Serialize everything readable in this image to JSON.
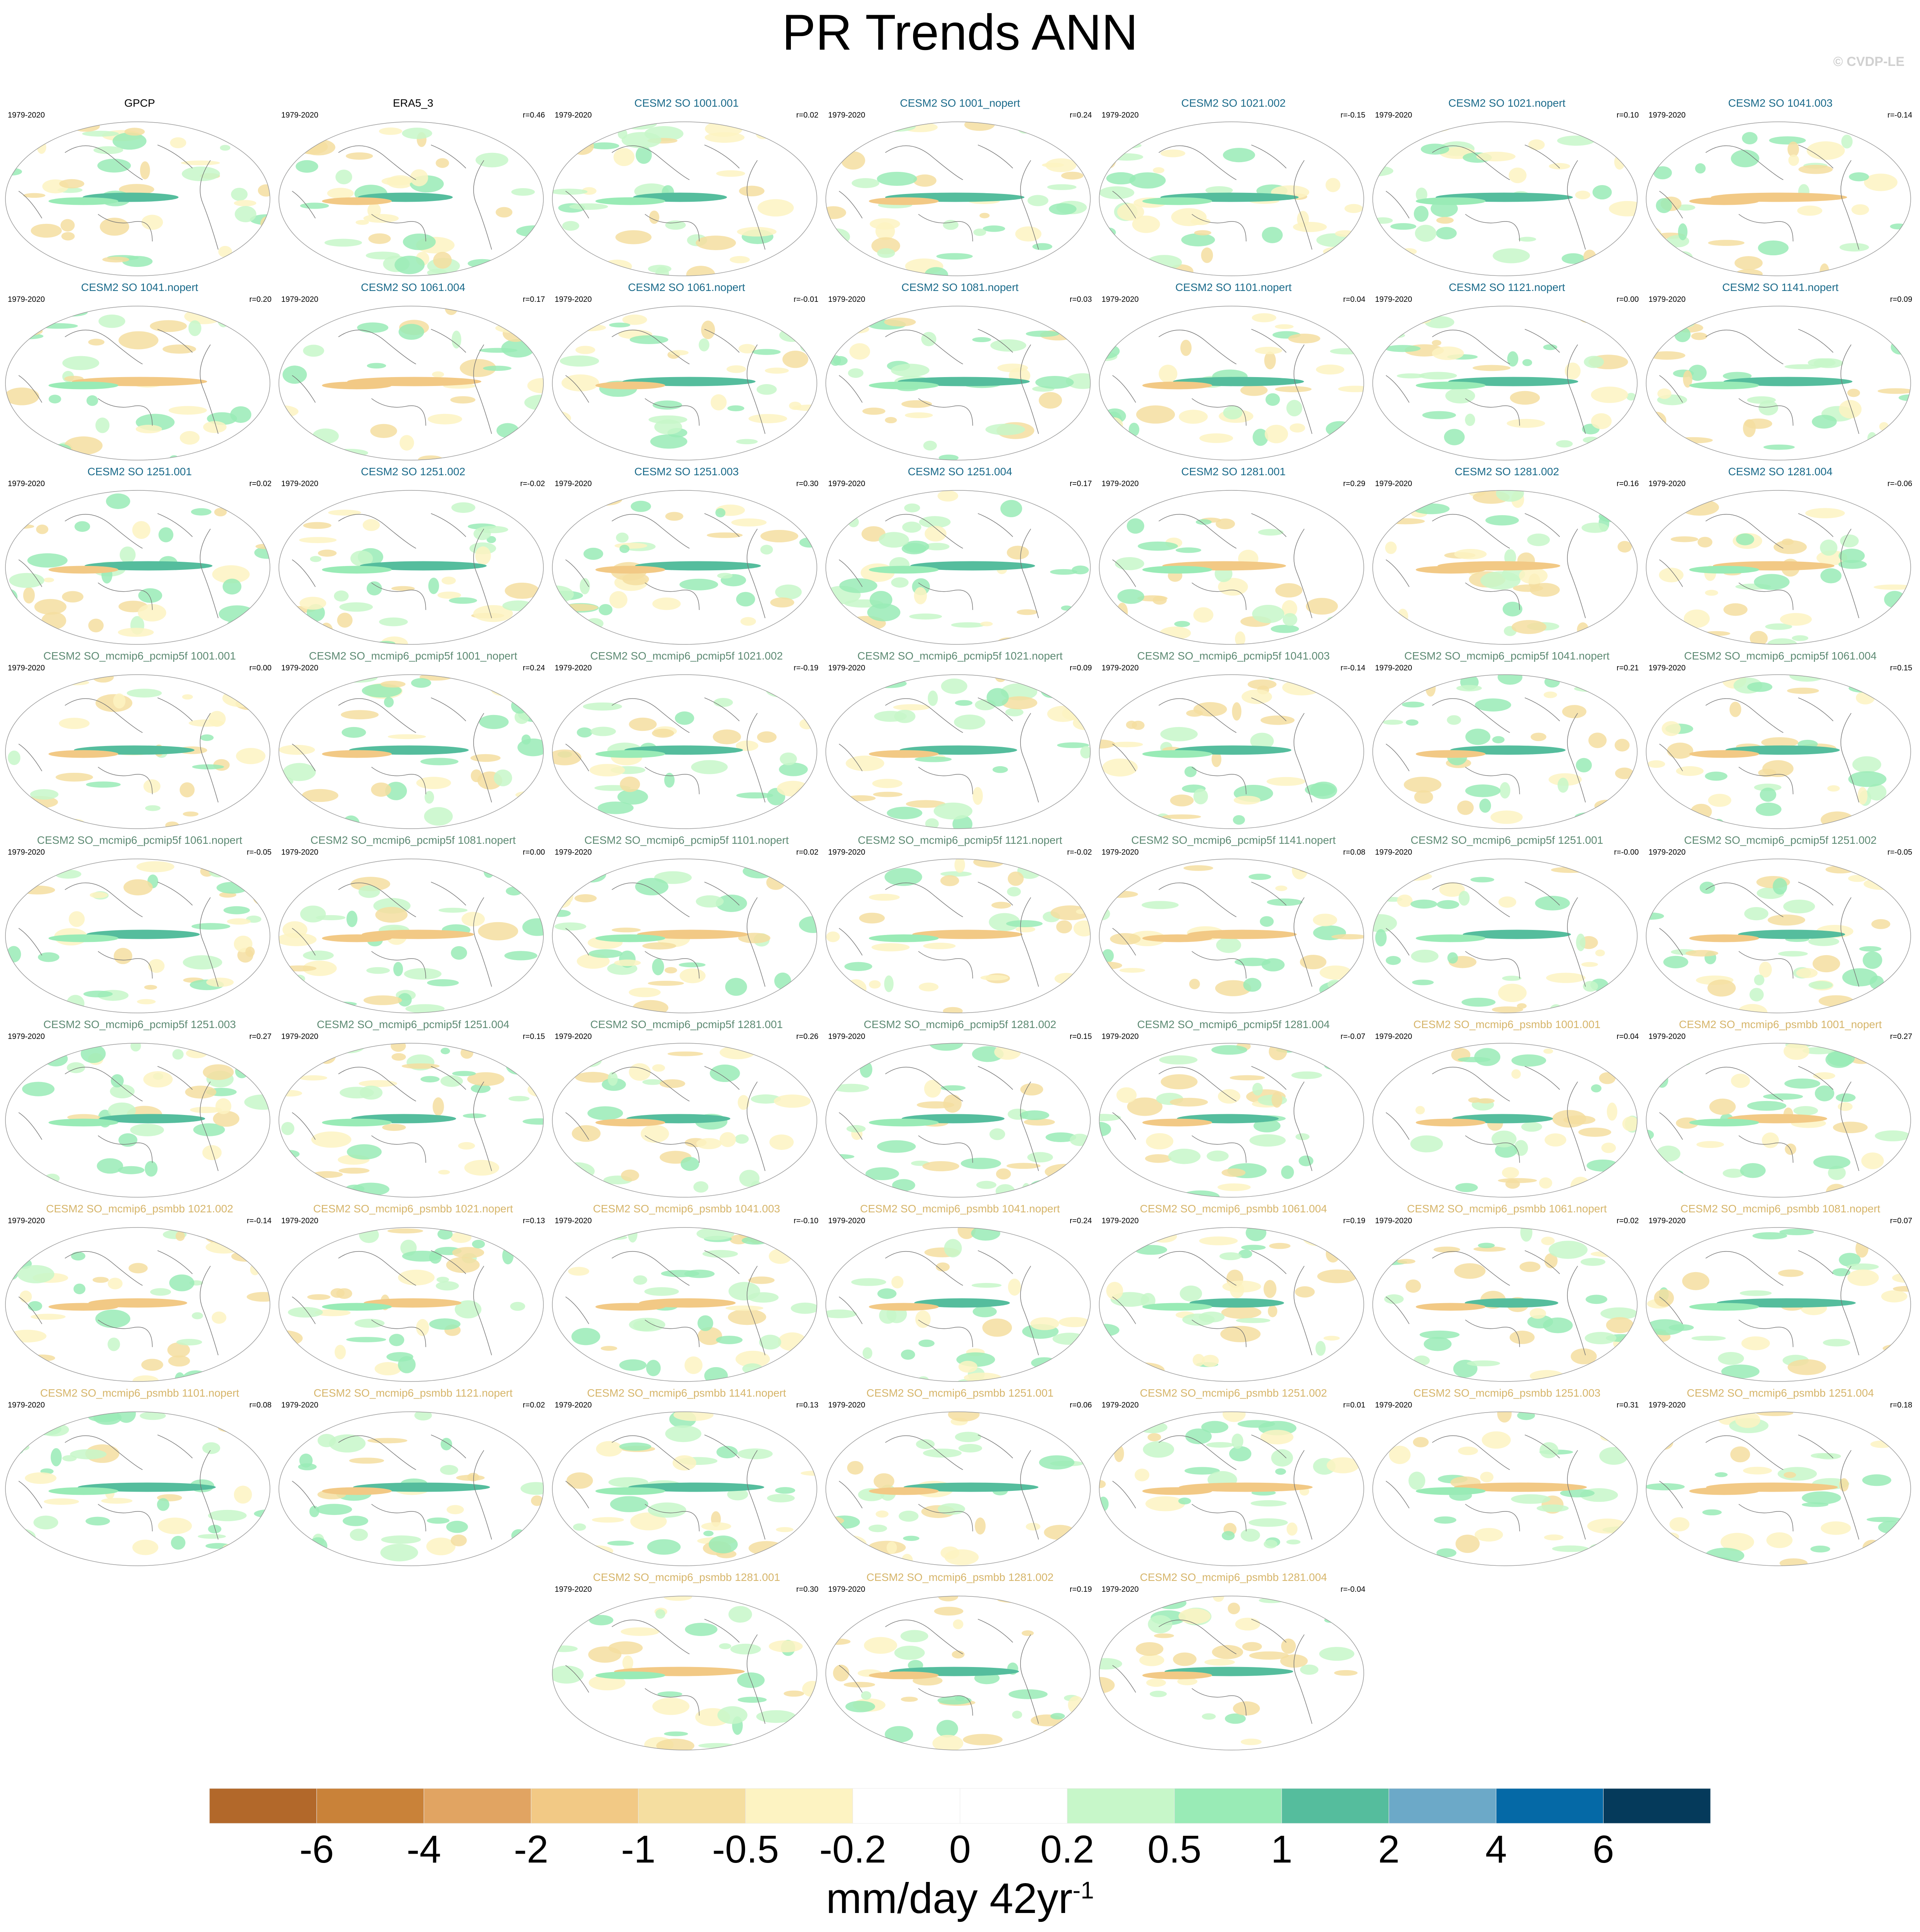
{
  "title": "PR Trends ANN",
  "credit": "© CVDP-LE",
  "colors": {
    "obs_title": "#000000",
    "so_title": "#1a6a8a",
    "pcmip5f_title": "#5d8a73",
    "psmbb_title": "#d6b56a",
    "ocean": "#ffffff",
    "coast": "#777777"
  },
  "chart_data": {
    "type": "heatmap",
    "title": "PR Trends ANN",
    "period": "1979-2020",
    "projection": "Robinson (global, Pacific-centred)",
    "colorbar": {
      "label": "mm/day 42yr",
      "label_superscript": "-1",
      "ticks": [
        "-6",
        "-4",
        "-2",
        "-1",
        "-0.5",
        "-0.2",
        "0",
        "0.2",
        "0.5",
        "1",
        "2",
        "4",
        "6"
      ],
      "colors": [
        "#b2682a",
        "#c98239",
        "#e1a462",
        "#f2c985",
        "#f5dea0",
        "#fdf3c2",
        "#ffffff",
        "#ffffff",
        "#c7f7c9",
        "#99ebb6",
        "#55bd9d",
        "#6ca9c8",
        "#0569a6",
        "#053a5b"
      ]
    },
    "panels": [
      {
        "name": "GPCP",
        "years": "1979-2020",
        "r": "",
        "group": "obs"
      },
      {
        "name": "ERA5_3",
        "years": "1979-2020",
        "r": "r=0.46",
        "group": "obs"
      },
      {
        "name": "CESM2 SO 1001.001",
        "years": "1979-2020",
        "r": "r=0.02",
        "group": "so"
      },
      {
        "name": "CESM2 SO 1001_nopert",
        "years": "1979-2020",
        "r": "r=0.24",
        "group": "so"
      },
      {
        "name": "CESM2 SO 1021.002",
        "years": "1979-2020",
        "r": "r=-0.15",
        "group": "so"
      },
      {
        "name": "CESM2 SO 1021.nopert",
        "years": "1979-2020",
        "r": "r=0.10",
        "group": "so"
      },
      {
        "name": "CESM2 SO 1041.003",
        "years": "1979-2020",
        "r": "r=-0.14",
        "group": "so"
      },
      {
        "name": "CESM2 SO 1041.nopert",
        "years": "1979-2020",
        "r": "r=0.20",
        "group": "so"
      },
      {
        "name": "CESM2 SO 1061.004",
        "years": "1979-2020",
        "r": "r=0.17",
        "group": "so"
      },
      {
        "name": "CESM2 SO 1061.nopert",
        "years": "1979-2020",
        "r": "r=-0.01",
        "group": "so"
      },
      {
        "name": "CESM2 SO 1081.nopert",
        "years": "1979-2020",
        "r": "r=0.03",
        "group": "so"
      },
      {
        "name": "CESM2 SO 1101.nopert",
        "years": "1979-2020",
        "r": "r=0.04",
        "group": "so"
      },
      {
        "name": "CESM2 SO 1121.nopert",
        "years": "1979-2020",
        "r": "r=0.00",
        "group": "so"
      },
      {
        "name": "CESM2 SO 1141.nopert",
        "years": "1979-2020",
        "r": "r=0.09",
        "group": "so"
      },
      {
        "name": "CESM2 SO 1251.001",
        "years": "1979-2020",
        "r": "r=0.02",
        "group": "so"
      },
      {
        "name": "CESM2 SO 1251.002",
        "years": "1979-2020",
        "r": "r=-0.02",
        "group": "so"
      },
      {
        "name": "CESM2 SO 1251.003",
        "years": "1979-2020",
        "r": "r=0.30",
        "group": "so"
      },
      {
        "name": "CESM2 SO 1251.004",
        "years": "1979-2020",
        "r": "r=0.17",
        "group": "so"
      },
      {
        "name": "CESM2 SO 1281.001",
        "years": "1979-2020",
        "r": "r=0.29",
        "group": "so"
      },
      {
        "name": "CESM2 SO 1281.002",
        "years": "1979-2020",
        "r": "r=0.16",
        "group": "so"
      },
      {
        "name": "CESM2 SO 1281.004",
        "years": "1979-2020",
        "r": "r=-0.06",
        "group": "so"
      },
      {
        "name": "CESM2 SO_mcmip6_pcmip5f 1001.001",
        "years": "1979-2020",
        "r": "r=0.00",
        "group": "pcmip5f"
      },
      {
        "name": "CESM2 SO_mcmip6_pcmip5f 1001_nopert",
        "years": "1979-2020",
        "r": "r=0.24",
        "group": "pcmip5f"
      },
      {
        "name": "CESM2 SO_mcmip6_pcmip5f 1021.002",
        "years": "1979-2020",
        "r": "r=-0.19",
        "group": "pcmip5f"
      },
      {
        "name": "CESM2 SO_mcmip6_pcmip5f 1021.nopert",
        "years": "1979-2020",
        "r": "r=0.09",
        "group": "pcmip5f"
      },
      {
        "name": "CESM2 SO_mcmip6_pcmip5f 1041.003",
        "years": "1979-2020",
        "r": "r=-0.14",
        "group": "pcmip5f"
      },
      {
        "name": "CESM2 SO_mcmip6_pcmip5f 1041.nopert",
        "years": "1979-2020",
        "r": "r=0.21",
        "group": "pcmip5f"
      },
      {
        "name": "CESM2 SO_mcmip6_pcmip5f 1061.004",
        "years": "1979-2020",
        "r": "r=0.15",
        "group": "pcmip5f"
      },
      {
        "name": "CESM2 SO_mcmip6_pcmip5f 1061.nopert",
        "years": "1979-2020",
        "r": "r=-0.05",
        "group": "pcmip5f"
      },
      {
        "name": "CESM2 SO_mcmip6_pcmip5f 1081.nopert",
        "years": "1979-2020",
        "r": "r=0.00",
        "group": "pcmip5f"
      },
      {
        "name": "CESM2 SO_mcmip6_pcmip5f 1101.nopert",
        "years": "1979-2020",
        "r": "r=0.02",
        "group": "pcmip5f"
      },
      {
        "name": "CESM2 SO_mcmip6_pcmip5f 1121.nopert",
        "years": "1979-2020",
        "r": "r=-0.02",
        "group": "pcmip5f"
      },
      {
        "name": "CESM2 SO_mcmip6_pcmip5f 1141.nopert",
        "years": "1979-2020",
        "r": "r=0.08",
        "group": "pcmip5f"
      },
      {
        "name": "CESM2 SO_mcmip6_pcmip5f 1251.001",
        "years": "1979-2020",
        "r": "r=-0.00",
        "group": "pcmip5f"
      },
      {
        "name": "CESM2 SO_mcmip6_pcmip5f 1251.002",
        "years": "1979-2020",
        "r": "r=-0.05",
        "group": "pcmip5f"
      },
      {
        "name": "CESM2 SO_mcmip6_pcmip5f 1251.003",
        "years": "1979-2020",
        "r": "r=0.27",
        "group": "pcmip5f"
      },
      {
        "name": "CESM2 SO_mcmip6_pcmip5f 1251.004",
        "years": "1979-2020",
        "r": "r=0.15",
        "group": "pcmip5f"
      },
      {
        "name": "CESM2 SO_mcmip6_pcmip5f 1281.001",
        "years": "1979-2020",
        "r": "r=0.26",
        "group": "pcmip5f"
      },
      {
        "name": "CESM2 SO_mcmip6_pcmip5f 1281.002",
        "years": "1979-2020",
        "r": "r=0.15",
        "group": "pcmip5f"
      },
      {
        "name": "CESM2 SO_mcmip6_pcmip5f 1281.004",
        "years": "1979-2020",
        "r": "r=-0.07",
        "group": "pcmip5f"
      },
      {
        "name": "CESM2 SO_mcmip6_psmbb 1001.001",
        "years": "1979-2020",
        "r": "r=0.04",
        "group": "psmbb"
      },
      {
        "name": "CESM2 SO_mcmip6_psmbb 1001_nopert",
        "years": "1979-2020",
        "r": "r=0.27",
        "group": "psmbb"
      },
      {
        "name": "CESM2 SO_mcmip6_psmbb 1021.002",
        "years": "1979-2020",
        "r": "r=-0.14",
        "group": "psmbb"
      },
      {
        "name": "CESM2 SO_mcmip6_psmbb 1021.nopert",
        "years": "1979-2020",
        "r": "r=0.13",
        "group": "psmbb"
      },
      {
        "name": "CESM2 SO_mcmip6_psmbb 1041.003",
        "years": "1979-2020",
        "r": "r=-0.10",
        "group": "psmbb"
      },
      {
        "name": "CESM2 SO_mcmip6_psmbb 1041.nopert",
        "years": "1979-2020",
        "r": "r=0.24",
        "group": "psmbb"
      },
      {
        "name": "CESM2 SO_mcmip6_psmbb 1061.004",
        "years": "1979-2020",
        "r": "r=0.19",
        "group": "psmbb"
      },
      {
        "name": "CESM2 SO_mcmip6_psmbb 1061.nopert",
        "years": "1979-2020",
        "r": "r=0.02",
        "group": "psmbb"
      },
      {
        "name": "CESM2 SO_mcmip6_psmbb 1081.nopert",
        "years": "1979-2020",
        "r": "r=0.07",
        "group": "psmbb"
      },
      {
        "name": "CESM2 SO_mcmip6_psmbb 1101.nopert",
        "years": "1979-2020",
        "r": "r=0.08",
        "group": "psmbb"
      },
      {
        "name": "CESM2 SO_mcmip6_psmbb 1121.nopert",
        "years": "1979-2020",
        "r": "r=0.02",
        "group": "psmbb"
      },
      {
        "name": "CESM2 SO_mcmip6_psmbb 1141.nopert",
        "years": "1979-2020",
        "r": "r=0.13",
        "group": "psmbb"
      },
      {
        "name": "CESM2 SO_mcmip6_psmbb 1251.001",
        "years": "1979-2020",
        "r": "r=0.06",
        "group": "psmbb"
      },
      {
        "name": "CESM2 SO_mcmip6_psmbb 1251.002",
        "years": "1979-2020",
        "r": "r=0.01",
        "group": "psmbb"
      },
      {
        "name": "CESM2 SO_mcmip6_psmbb 1251.003",
        "years": "1979-2020",
        "r": "r=0.31",
        "group": "psmbb"
      },
      {
        "name": "CESM2 SO_mcmip6_psmbb 1251.004",
        "years": "1979-2020",
        "r": "r=0.18",
        "group": "psmbb"
      },
      {
        "name": "CESM2 SO_mcmip6_psmbb 1281.001",
        "years": "1979-2020",
        "r": "r=0.30",
        "group": "psmbb"
      },
      {
        "name": "CESM2 SO_mcmip6_psmbb 1281.002",
        "years": "1979-2020",
        "r": "r=0.19",
        "group": "psmbb"
      },
      {
        "name": "CESM2 SO_mcmip6_psmbb 1281.004",
        "years": "1979-2020",
        "r": "r=-0.04",
        "group": "psmbb"
      }
    ]
  }
}
